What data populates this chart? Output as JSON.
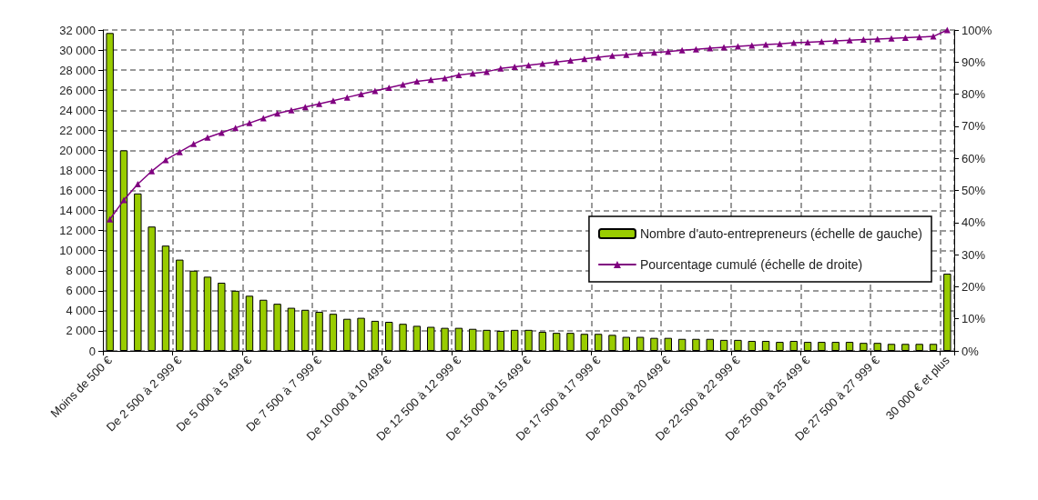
{
  "chart_data": {
    "type": "bar",
    "categories": [
      "Moins de 500 €",
      null,
      null,
      null,
      null,
      "De 2 500 à 2 999 €",
      null,
      null,
      null,
      null,
      "De 5 000 à 5 499 €",
      null,
      null,
      null,
      null,
      "De 7 500 à 7 999 €",
      null,
      null,
      null,
      null,
      "De 10 000 à 10 499 €",
      null,
      null,
      null,
      null,
      "De 12 500 à 12 999 €",
      null,
      null,
      null,
      null,
      "De 15 000 à 15 499 €",
      null,
      null,
      null,
      null,
      "De 17 500 à 17 999 €",
      null,
      null,
      null,
      null,
      "De 20 000 à 20 499 €",
      null,
      null,
      null,
      null,
      "De 22 500 à 22 999 €",
      null,
      null,
      null,
      null,
      "De 25 000 à 25 499 €",
      null,
      null,
      null,
      null,
      "De 27 500 à 27 999 €",
      null,
      null,
      null,
      null,
      "30 000 € et plus"
    ],
    "series": [
      {
        "name": "Nombre d'auto-entrepreneurs (échelle de gauche)",
        "color": "#99cc00",
        "values": [
          31700,
          20000,
          15700,
          12400,
          10500,
          9100,
          8000,
          7400,
          6800,
          6000,
          5500,
          5100,
          4700,
          4300,
          4100,
          3900,
          3700,
          3200,
          3300,
          3000,
          2900,
          2700,
          2500,
          2400,
          2300,
          2300,
          2200,
          2100,
          2000,
          2100,
          2100,
          1900,
          1800,
          1800,
          1700,
          1700,
          1600,
          1400,
          1400,
          1300,
          1300,
          1200,
          1200,
          1200,
          1100,
          1100,
          1000,
          1000,
          900,
          1000,
          900,
          900,
          900,
          900,
          800,
          800,
          700,
          700,
          700,
          700,
          7700
        ]
      },
      {
        "name": "Pourcentage cumulé (échelle de droite)",
        "type": "line",
        "axis": "y2",
        "color": "#800080",
        "marker": "triangle",
        "values": [
          41,
          47,
          52,
          56,
          59.5,
          62,
          64.5,
          66.5,
          68,
          69.5,
          71,
          72.5,
          74,
          75,
          76,
          77,
          78,
          79,
          80,
          81,
          82,
          83,
          84,
          84.5,
          85,
          86,
          86.5,
          87,
          88,
          88.5,
          89,
          89.5,
          90,
          90.5,
          91,
          91.5,
          92,
          92.3,
          92.7,
          93,
          93.3,
          93.7,
          94,
          94.3,
          94.6,
          94.9,
          95.2,
          95.5,
          95.7,
          96,
          96.2,
          96.4,
          96.6,
          96.8,
          97,
          97.2,
          97.4,
          97.6,
          97.8,
          98,
          100
        ]
      }
    ],
    "ylim": [
      0,
      32000
    ],
    "yticks": [
      0,
      {
        "value": 2000,
        "label": "2 000"
      },
      {
        "value": 4000,
        "label": "4 000"
      },
      {
        "value": 6000,
        "label": "6 000"
      },
      {
        "value": 8000,
        "label": "8 000"
      },
      {
        "value": 10000,
        "label": "10 000"
      },
      {
        "value": 12000,
        "label": "12 000"
      },
      {
        "value": 14000,
        "label": "14 000"
      },
      {
        "value": 16000,
        "label": "16 000"
      },
      {
        "value": 18000,
        "label": "18 000"
      },
      {
        "value": 20000,
        "label": "20 000"
      },
      {
        "value": 22000,
        "label": "22 000"
      },
      {
        "value": 24000,
        "label": "24 000"
      },
      {
        "value": 26000,
        "label": "26 000"
      },
      {
        "value": 28000,
        "label": "28 000"
      },
      {
        "value": 30000,
        "label": "30 000"
      },
      {
        "value": 32000,
        "label": "32 000"
      }
    ],
    "y2lim": [
      0,
      100
    ],
    "y2ticks": [
      {
        "value": 0,
        "label": "0%"
      },
      {
        "value": 10,
        "label": "10%"
      },
      {
        "value": 20,
        "label": "20%"
      },
      {
        "value": 30,
        "label": "30%"
      },
      {
        "value": 40,
        "label": "40%"
      },
      {
        "value": 50,
        "label": "50%"
      },
      {
        "value": 60,
        "label": "60%"
      },
      {
        "value": 70,
        "label": "70%"
      },
      {
        "value": 80,
        "label": "80%"
      },
      {
        "value": 90,
        "label": "90%"
      },
      {
        "value": 100,
        "label": "100%"
      }
    ],
    "grid": true,
    "legend": "right",
    "line_style": "solid"
  }
}
